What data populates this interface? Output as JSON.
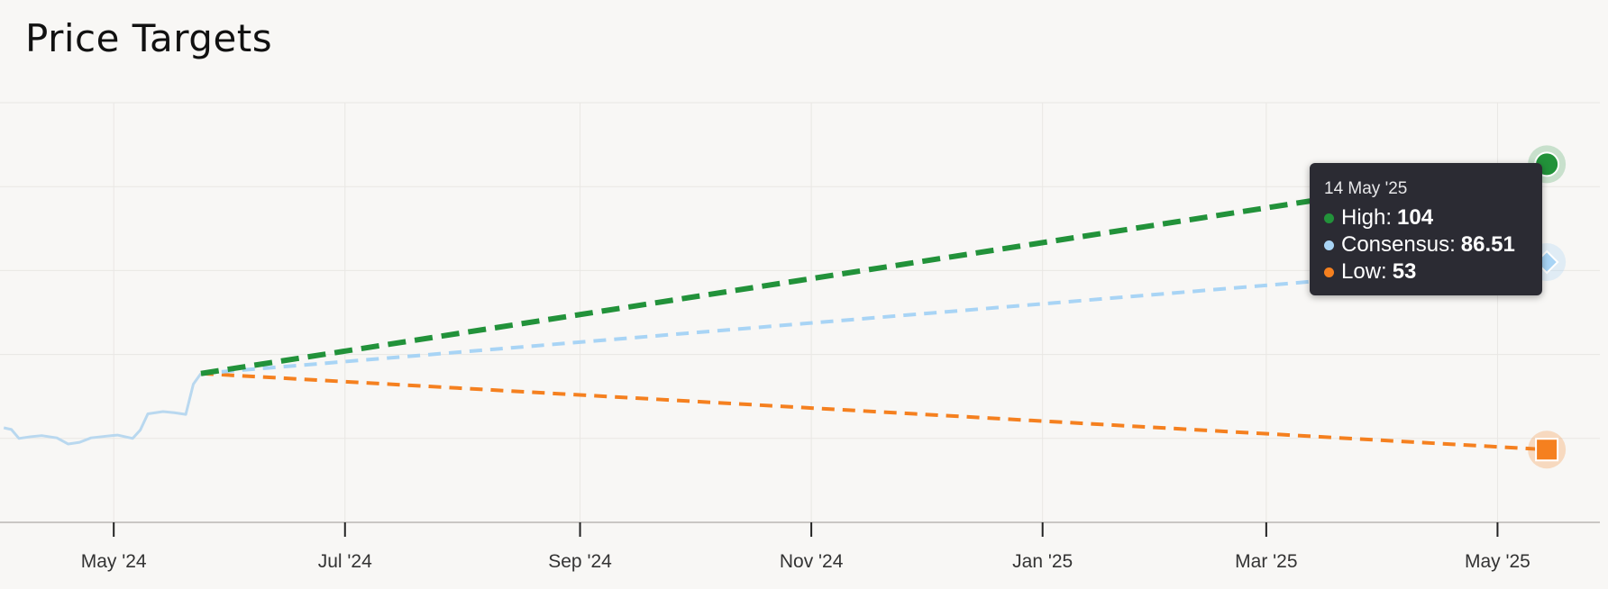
{
  "title": "Price Targets",
  "colors": {
    "high": "#22923a",
    "consensus": "#a8d4f5",
    "low": "#f5801f",
    "history": "#b9d8ef",
    "grid": "#e9e7e4",
    "axis": "#c9c7c4"
  },
  "tooltip": {
    "date": "14 May '25",
    "items": [
      {
        "label": "High:",
        "value": "104",
        "color": "#22923a"
      },
      {
        "label": "Consensus:",
        "value": "86.51",
        "color": "#a8d4f5"
      },
      {
        "label": "Low:",
        "value": "53",
        "color": "#f5801f"
      }
    ]
  },
  "chart_data": {
    "type": "line",
    "title": "Price Targets",
    "xlabel": "",
    "ylabel": "",
    "grid": true,
    "legend": "none",
    "x_ticks": [
      "May '24",
      "Jul '24",
      "Sep '24",
      "Nov '24",
      "Jan '25",
      "Mar '25",
      "May '25"
    ],
    "x_tick_dates": [
      "2024-05-01",
      "2024-07-01",
      "2024-09-01",
      "2024-11-01",
      "2025-01-01",
      "2025-03-01",
      "2025-05-01"
    ],
    "xlim": [
      "2024-04-01",
      "2025-05-28"
    ],
    "ylim": [
      40,
      115
    ],
    "y_gridlines": [
      40,
      55,
      70,
      85,
      100,
      115
    ],
    "series": [
      {
        "kind": "history",
        "points": [
          {
            "x": "2024-04-02",
            "y": 56.9
          },
          {
            "x": "2024-04-04",
            "y": 56.6
          },
          {
            "x": "2024-04-06",
            "y": 55.0
          },
          {
            "x": "2024-04-09",
            "y": 55.3
          },
          {
            "x": "2024-04-12",
            "y": 55.5
          },
          {
            "x": "2024-04-16",
            "y": 55.1
          },
          {
            "x": "2024-04-19",
            "y": 54.0
          },
          {
            "x": "2024-04-22",
            "y": 54.3
          },
          {
            "x": "2024-04-25",
            "y": 55.1
          },
          {
            "x": "2024-04-29",
            "y": 55.4
          },
          {
            "x": "2024-05-02",
            "y": 55.6
          },
          {
            "x": "2024-05-06",
            "y": 55.0
          },
          {
            "x": "2024-05-08",
            "y": 56.5
          },
          {
            "x": "2024-05-10",
            "y": 59.4
          },
          {
            "x": "2024-05-14",
            "y": 59.8
          },
          {
            "x": "2024-05-17",
            "y": 59.6
          },
          {
            "x": "2024-05-20",
            "y": 59.3
          },
          {
            "x": "2024-05-22",
            "y": 64.7
          },
          {
            "x": "2024-05-24",
            "y": 66.6
          }
        ]
      },
      {
        "name": "High",
        "kind": "forecast",
        "points": [
          {
            "x": "2024-05-24",
            "y": 66.6
          },
          {
            "x": "2025-05-14",
            "y": 104
          }
        ]
      },
      {
        "name": "Consensus",
        "kind": "forecast",
        "points": [
          {
            "x": "2024-05-24",
            "y": 66.6
          },
          {
            "x": "2025-05-14",
            "y": 86.51
          }
        ]
      },
      {
        "name": "Low",
        "kind": "forecast",
        "points": [
          {
            "x": "2024-05-24",
            "y": 66.6
          },
          {
            "x": "2025-05-14",
            "y": 53
          }
        ]
      }
    ]
  }
}
